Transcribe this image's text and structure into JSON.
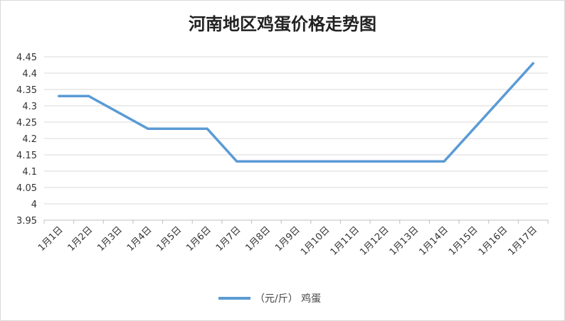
{
  "chart_data": {
    "type": "line",
    "title": "河南地区鸡蛋价格走势图",
    "categories": [
      "1月1日",
      "1月2日",
      "1月3日",
      "1月4日",
      "1月5日",
      "1月6日",
      "1月7日",
      "1月8日",
      "1月9日",
      "1月10日",
      "1月11日",
      "1月12日",
      "1月13日",
      "1月14日",
      "1月15日",
      "1月16日",
      "1月17日"
    ],
    "x": [
      "1月1日",
      "1月2日",
      "1月4日",
      "1月5日",
      "1月6日",
      "1月7日",
      "1月8日",
      "1月9日",
      "1月10日",
      "1月11日",
      "1月12日",
      "1月13日",
      "1月14日",
      "1月17日"
    ],
    "series": [
      {
        "name": "（元/斤） 鸡蛋",
        "color": "#5b9bd5",
        "values": [
          4.33,
          4.33,
          4.23,
          4.23,
          4.23,
          4.13,
          4.13,
          4.13,
          4.13,
          4.13,
          4.13,
          4.13,
          4.13,
          4.43
        ]
      }
    ],
    "yticks": [
      "4.45",
      "4.4",
      "4.35",
      "4.3",
      "4.25",
      "4.2",
      "4.15",
      "4.1",
      "4.05",
      "4",
      "3.95"
    ],
    "ylim": [
      3.95,
      4.45
    ],
    "grid": true,
    "legend_position": "bottom"
  }
}
